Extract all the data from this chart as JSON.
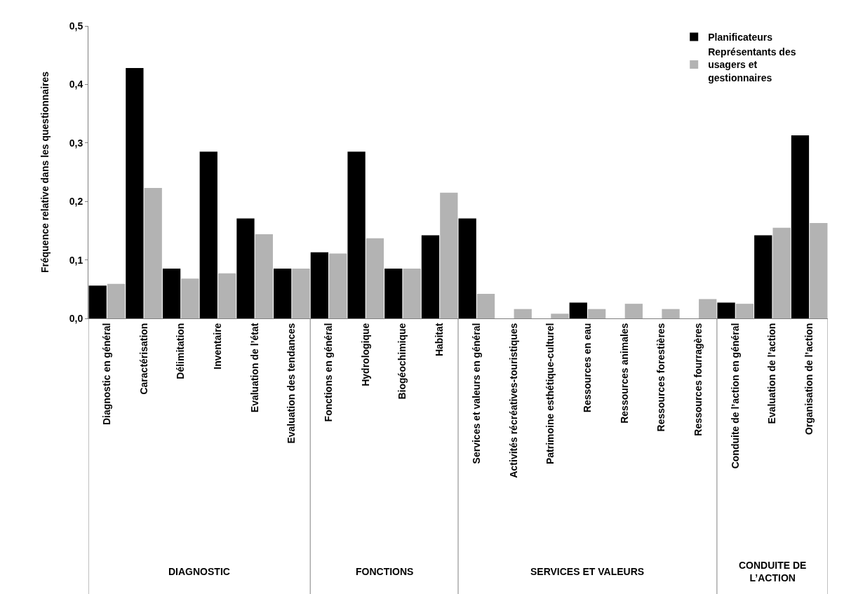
{
  "chart_data": {
    "type": "bar",
    "ylabel": "Fréquence relative dans les questionnaires",
    "categories": [
      "Diagnostic en général",
      "Caractérisation",
      "Délimitation",
      "Inventaire",
      "Evaluation de l’état",
      "Evaluation des tendances",
      "Fonctions en général",
      "Hydrologique",
      "Biogéochimique",
      "Habitat",
      "Services et valeurs en général",
      "Activités récréatives-touristiques",
      "Patrimoine esthétique-culturel",
      "Ressources en eau",
      "Ressources animales",
      "Ressources forestières",
      "Ressources fourragères",
      "Conduite de l’action en général",
      "Evaluation de l’action",
      "Organisation de l’action"
    ],
    "series": [
      {
        "name": "Planificateurs",
        "color": "#000000",
        "values": [
          0.056,
          0.428,
          0.085,
          0.285,
          0.171,
          0.085,
          0.113,
          0.285,
          0.085,
          0.142,
          0.171,
          0,
          0,
          0.027,
          0,
          0,
          0,
          0.027,
          0.142,
          0.313
        ]
      },
      {
        "name": "Représentants des usagers et gestionnaires",
        "color": "#b3b3b3",
        "values": [
          0.059,
          0.223,
          0.068,
          0.077,
          0.144,
          0.085,
          0.111,
          0.137,
          0.085,
          0.215,
          0.042,
          0.016,
          0.008,
          0.016,
          0.025,
          0.016,
          0.033,
          0.025,
          0.155,
          0.163
        ]
      }
    ],
    "annotations": [
      "DIAGNOSTIC",
      "FONCTIONS",
      "SERVICES ET VALEURS",
      "CONDUITE DE L’ACTION"
    ],
    "ylim": [
      0,
      0.5
    ],
    "yticks": [
      {
        "value": 0,
        "label": "0,0"
      },
      {
        "value": 0.1,
        "label": "0,1"
      },
      {
        "value": 0.2,
        "label": "0,2"
      },
      {
        "value": 0.3,
        "label": "0,3"
      },
      {
        "value": 0.4,
        "label": "0,4"
      },
      {
        "value": 0.5,
        "label": "0,5"
      }
    ],
    "legend": "top right"
  }
}
